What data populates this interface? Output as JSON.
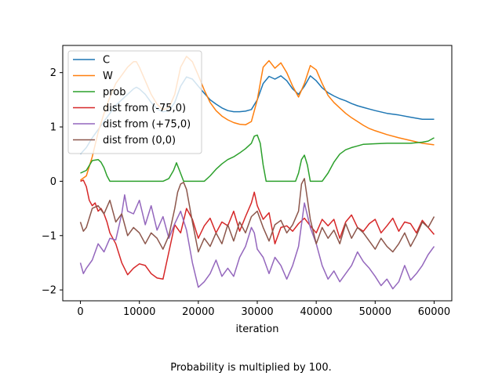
{
  "caption": "Probability is multiplied by 100.",
  "chart_data": {
    "type": "line",
    "title": "",
    "xlabel": "iteration",
    "ylabel": "",
    "xlim": [
      -3000,
      63000
    ],
    "ylim": [
      -2.2,
      2.5
    ],
    "xticks": [
      0,
      10000,
      20000,
      30000,
      40000,
      50000,
      60000
    ],
    "xtick_labels": [
      "0",
      "10000",
      "20000",
      "30000",
      "40000",
      "50000",
      "60000"
    ],
    "yticks": [
      -2,
      -1,
      0,
      1,
      2
    ],
    "ytick_labels": [
      "−2",
      "−1",
      "0",
      "1",
      "2"
    ],
    "grid": false,
    "legend_position": "top-left",
    "series": [
      {
        "name": "C",
        "color": "#1f77b4",
        "x": [
          0,
          1000,
          2000,
          3000,
          4000,
          5000,
          6000,
          7000,
          8000,
          9000,
          9500,
          10000,
          11000,
          12000,
          13000,
          14000,
          15000,
          16000,
          17000,
          18000,
          19000,
          20000,
          21000,
          22000,
          23000,
          24000,
          25000,
          26000,
          27000,
          28000,
          29000,
          30000,
          31000,
          32000,
          33000,
          34000,
          35000,
          36000,
          37000,
          38000,
          39000,
          40000,
          41000,
          42000,
          43000,
          44000,
          45000,
          46000,
          47000,
          48000,
          49000,
          50000,
          52000,
          54000,
          56000,
          58000,
          60000
        ],
        "y": [
          0.5,
          0.62,
          0.8,
          0.95,
          1.1,
          1.25,
          1.4,
          1.5,
          1.6,
          1.7,
          1.73,
          1.7,
          1.6,
          1.45,
          1.33,
          1.28,
          1.3,
          1.45,
          1.75,
          1.92,
          1.88,
          1.75,
          1.62,
          1.5,
          1.42,
          1.35,
          1.3,
          1.28,
          1.28,
          1.29,
          1.32,
          1.5,
          1.8,
          1.93,
          1.88,
          1.94,
          1.85,
          1.7,
          1.6,
          1.75,
          1.94,
          1.85,
          1.72,
          1.63,
          1.57,
          1.52,
          1.48,
          1.43,
          1.39,
          1.36,
          1.33,
          1.3,
          1.25,
          1.22,
          1.18,
          1.14,
          1.14
        ]
      },
      {
        "name": "W",
        "color": "#ff7f0e",
        "x": [
          0,
          1000,
          2000,
          3000,
          4000,
          5000,
          6000,
          7000,
          8000,
          9000,
          9500,
          10000,
          11000,
          12000,
          13000,
          14000,
          15000,
          16000,
          17000,
          18000,
          19000,
          20000,
          21000,
          22000,
          23000,
          24000,
          25000,
          26000,
          27000,
          28000,
          29000,
          30000,
          31000,
          32000,
          33000,
          34000,
          35000,
          36000,
          37000,
          38000,
          39000,
          40000,
          41000,
          42000,
          43000,
          44000,
          45000,
          46000,
          47000,
          48000,
          49000,
          50000,
          52000,
          54000,
          56000,
          58000,
          60000
        ],
        "y": [
          0.02,
          0.1,
          0.45,
          0.9,
          1.25,
          1.55,
          1.8,
          1.95,
          2.1,
          2.2,
          2.2,
          2.1,
          1.85,
          1.6,
          1.42,
          1.32,
          1.35,
          1.6,
          2.1,
          2.3,
          2.2,
          1.95,
          1.68,
          1.45,
          1.3,
          1.2,
          1.13,
          1.08,
          1.05,
          1.04,
          1.1,
          1.5,
          2.1,
          2.22,
          2.08,
          2.18,
          2.0,
          1.75,
          1.55,
          1.8,
          2.13,
          2.05,
          1.8,
          1.58,
          1.45,
          1.35,
          1.25,
          1.17,
          1.1,
          1.03,
          0.97,
          0.93,
          0.86,
          0.8,
          0.75,
          0.7,
          0.67
        ]
      },
      {
        "name": "prob",
        "color": "#2ca02c",
        "x": [
          0,
          1000,
          2000,
          3000,
          3500,
          4000,
          4500,
          5000,
          14000,
          15000,
          15800,
          16300,
          16800,
          17500,
          18000,
          21000,
          22000,
          23000,
          24000,
          25000,
          26000,
          27000,
          28000,
          29000,
          29500,
          30000,
          30500,
          31000,
          31500,
          36500,
          37000,
          37500,
          38000,
          38500,
          39000,
          41000,
          42000,
          43000,
          44000,
          45000,
          46000,
          47000,
          48000,
          50000,
          52000,
          54000,
          56000,
          58000,
          59000,
          60000
        ],
        "y": [
          0.15,
          0.2,
          0.38,
          0.4,
          0.35,
          0.25,
          0.1,
          0.0,
          0.0,
          0.05,
          0.2,
          0.34,
          0.2,
          0.0,
          0.0,
          0.0,
          0.1,
          0.22,
          0.32,
          0.4,
          0.45,
          0.52,
          0.6,
          0.7,
          0.83,
          0.85,
          0.7,
          0.3,
          0.0,
          0.0,
          0.15,
          0.4,
          0.48,
          0.3,
          0.0,
          0.0,
          0.15,
          0.35,
          0.5,
          0.58,
          0.62,
          0.65,
          0.68,
          0.69,
          0.7,
          0.7,
          0.7,
          0.72,
          0.74,
          0.8
        ]
      },
      {
        "name": "dist from (-75,0)",
        "color": "#d62728",
        "x": [
          0,
          500,
          1000,
          1500,
          2000,
          2500,
          3000,
          3500,
          4000,
          4500,
          5000,
          6000,
          7000,
          8000,
          9000,
          10000,
          11000,
          12000,
          13000,
          14000,
          15000,
          16000,
          17000,
          18000,
          19000,
          20000,
          21000,
          22000,
          23000,
          24000,
          25000,
          26000,
          27000,
          28000,
          29000,
          29500,
          30000,
          31000,
          32000,
          33000,
          34000,
          35000,
          36000,
          37000,
          38000,
          39000,
          40000,
          41000,
          42000,
          43000,
          44000,
          45000,
          46000,
          47000,
          48000,
          49000,
          50000,
          51000,
          52000,
          53000,
          54000,
          55000,
          56000,
          57000,
          58000,
          59000,
          60000
        ],
        "y": [
          0.0,
          0.02,
          -0.1,
          -0.35,
          -0.45,
          -0.4,
          -0.55,
          -0.5,
          -0.6,
          -0.75,
          -0.95,
          -1.15,
          -1.5,
          -1.72,
          -1.6,
          -1.52,
          -1.55,
          -1.7,
          -1.78,
          -1.8,
          -1.3,
          -0.8,
          -0.95,
          -0.5,
          -0.7,
          -1.05,
          -0.82,
          -0.68,
          -0.95,
          -0.75,
          -0.82,
          -0.55,
          -0.92,
          -0.65,
          -0.4,
          -0.2,
          -0.45,
          -0.7,
          -0.58,
          -1.15,
          -0.85,
          -0.82,
          -0.92,
          -0.78,
          -0.68,
          -0.82,
          -0.95,
          -0.7,
          -0.82,
          -0.7,
          -1.05,
          -0.75,
          -0.62,
          -0.85,
          -0.92,
          -0.78,
          -0.7,
          -0.95,
          -0.82,
          -0.68,
          -0.92,
          -0.75,
          -0.78,
          -0.95,
          -0.72,
          -0.85,
          -0.98
        ]
      },
      {
        "name": "dist from (+75,0)",
        "color": "#9467bd",
        "x": [
          0,
          500,
          1000,
          2000,
          3000,
          4000,
          5000,
          6000,
          7000,
          7500,
          8000,
          9000,
          10000,
          11000,
          12000,
          13000,
          14000,
          15000,
          16000,
          17000,
          18000,
          19000,
          20000,
          21000,
          22000,
          23000,
          24000,
          25000,
          26000,
          27000,
          28000,
          29000,
          29500,
          30000,
          31000,
          32000,
          33000,
          34000,
          35000,
          36000,
          37000,
          38000,
          39000,
          40000,
          41000,
          42000,
          43000,
          44000,
          45000,
          46000,
          47000,
          48000,
          49000,
          50000,
          51000,
          52000,
          53000,
          54000,
          55000,
          56000,
          57000,
          58000,
          59000,
          60000
        ],
        "y": [
          -1.5,
          -1.7,
          -1.6,
          -1.45,
          -1.15,
          -1.3,
          -1.05,
          -1.08,
          -0.6,
          -0.25,
          -0.55,
          -0.6,
          -0.35,
          -0.8,
          -0.45,
          -0.9,
          -0.65,
          -1.05,
          -0.78,
          -0.55,
          -0.9,
          -1.5,
          -1.95,
          -1.85,
          -1.7,
          -1.45,
          -1.75,
          -1.6,
          -1.75,
          -1.4,
          -1.2,
          -0.85,
          -0.95,
          -1.25,
          -1.4,
          -1.7,
          -1.4,
          -1.55,
          -1.8,
          -1.55,
          -1.2,
          -0.4,
          -0.85,
          -1.15,
          -1.55,
          -1.8,
          -1.65,
          -1.85,
          -1.7,
          -1.55,
          -1.3,
          -1.48,
          -1.6,
          -1.75,
          -1.92,
          -1.8,
          -1.98,
          -1.85,
          -1.55,
          -1.82,
          -1.7,
          -1.55,
          -1.35,
          -1.2
        ]
      },
      {
        "name": "dist from (0,0)",
        "color": "#8c564b",
        "x": [
          0,
          500,
          1000,
          2000,
          3000,
          4000,
          5000,
          6000,
          7000,
          8000,
          9000,
          10000,
          11000,
          12000,
          13000,
          14000,
          15000,
          16000,
          16500,
          17000,
          17500,
          18000,
          19000,
          20000,
          21000,
          22000,
          23000,
          24000,
          25000,
          26000,
          27000,
          28000,
          29000,
          30000,
          31000,
          32000,
          33000,
          34000,
          35000,
          36000,
          37000,
          37500,
          38000,
          39000,
          40000,
          41000,
          42000,
          43000,
          44000,
          45000,
          46000,
          47000,
          48000,
          49000,
          50000,
          51000,
          52000,
          53000,
          54000,
          55000,
          56000,
          57000,
          58000,
          59000,
          60000
        ],
        "y": [
          -0.75,
          -0.92,
          -0.85,
          -0.5,
          -0.45,
          -0.6,
          -0.35,
          -0.75,
          -0.6,
          -1.0,
          -0.85,
          -0.95,
          -1.15,
          -0.95,
          -1.05,
          -1.25,
          -1.0,
          -0.5,
          -0.2,
          -0.05,
          -0.02,
          -0.15,
          -0.75,
          -1.3,
          -1.05,
          -1.2,
          -0.95,
          -1.15,
          -0.8,
          -1.1,
          -0.75,
          -0.95,
          -0.65,
          -0.55,
          -0.85,
          -1.1,
          -0.8,
          -0.72,
          -0.95,
          -0.8,
          -0.55,
          -0.05,
          0.05,
          -0.7,
          -1.15,
          -0.85,
          -1.05,
          -0.9,
          -1.15,
          -0.78,
          -1.05,
          -0.85,
          -0.95,
          -1.1,
          -1.25,
          -1.05,
          -1.2,
          -1.3,
          -1.15,
          -0.95,
          -1.2,
          -1.0,
          -0.75,
          -0.85,
          -0.65
        ]
      }
    ]
  }
}
